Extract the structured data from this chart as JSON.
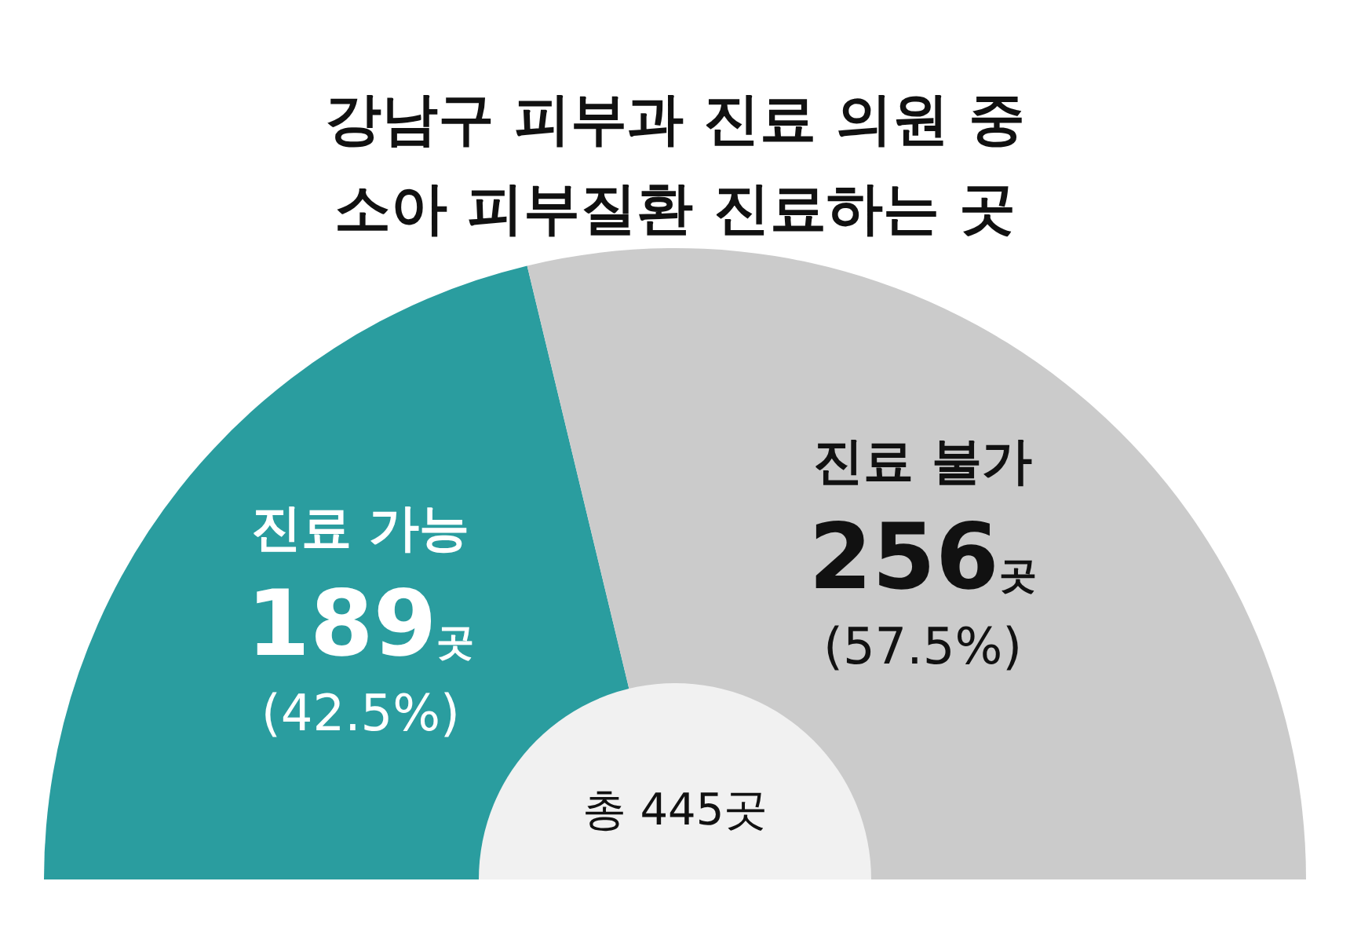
{
  "chart_data": {
    "type": "pie",
    "title": "강남구 피부과 진료 의원 중",
    "subtitle": "소아 피부질환 진료하는 곳",
    "categories": [
      "진료 가능",
      "진료 불가"
    ],
    "values": [
      189,
      256
    ],
    "colors": [
      "#2a9d9f",
      "#cbcbcb"
    ],
    "value_labels": [
      "189곳",
      "256곳"
    ],
    "annotations": [
      "(42.5%)",
      "(57.5%)",
      "총 445곳"
    ]
  }
}
